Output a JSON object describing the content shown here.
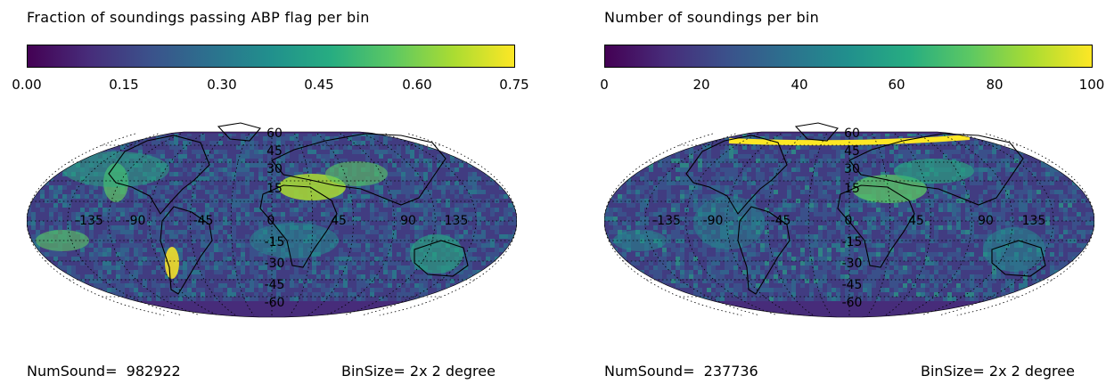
{
  "colorscale": [
    "#440154",
    "#472c7a",
    "#3b518b",
    "#2c718e",
    "#21908d",
    "#27ad81",
    "#5cc863",
    "#aadc32",
    "#fde725"
  ],
  "land_outline_color": "#000000",
  "panels": [
    {
      "id": "fraction",
      "title": "Fraction of soundings passing ABP flag per bin",
      "colorbar_ticks": [
        "0.00",
        "0.15",
        "0.30",
        "0.45",
        "0.60",
        "0.75"
      ],
      "lon_labels": [
        "-135",
        "-90",
        "-45",
        "0",
        "45",
        "90",
        "135"
      ],
      "lat_labels": [
        "60",
        "45",
        "30",
        "15",
        "-15",
        "-30",
        "-45",
        "-60"
      ],
      "num_sound_label": "NumSound=  982922",
      "bin_size_label": "BinSize= 2x 2 degree"
    },
    {
      "id": "count",
      "title": "Number of soundings per bin",
      "colorbar_ticks": [
        "0",
        "20",
        "40",
        "60",
        "80",
        "100"
      ],
      "lon_labels": [
        "-135",
        "-90",
        "-45",
        "0",
        "45",
        "90",
        "135"
      ],
      "lat_labels": [
        "60",
        "45",
        "30",
        "15",
        "-15",
        "-30",
        "-45",
        "-60"
      ],
      "num_sound_label": "NumSound=  237736",
      "bin_size_label": "BinSize= 2x 2 degree"
    }
  ]
}
